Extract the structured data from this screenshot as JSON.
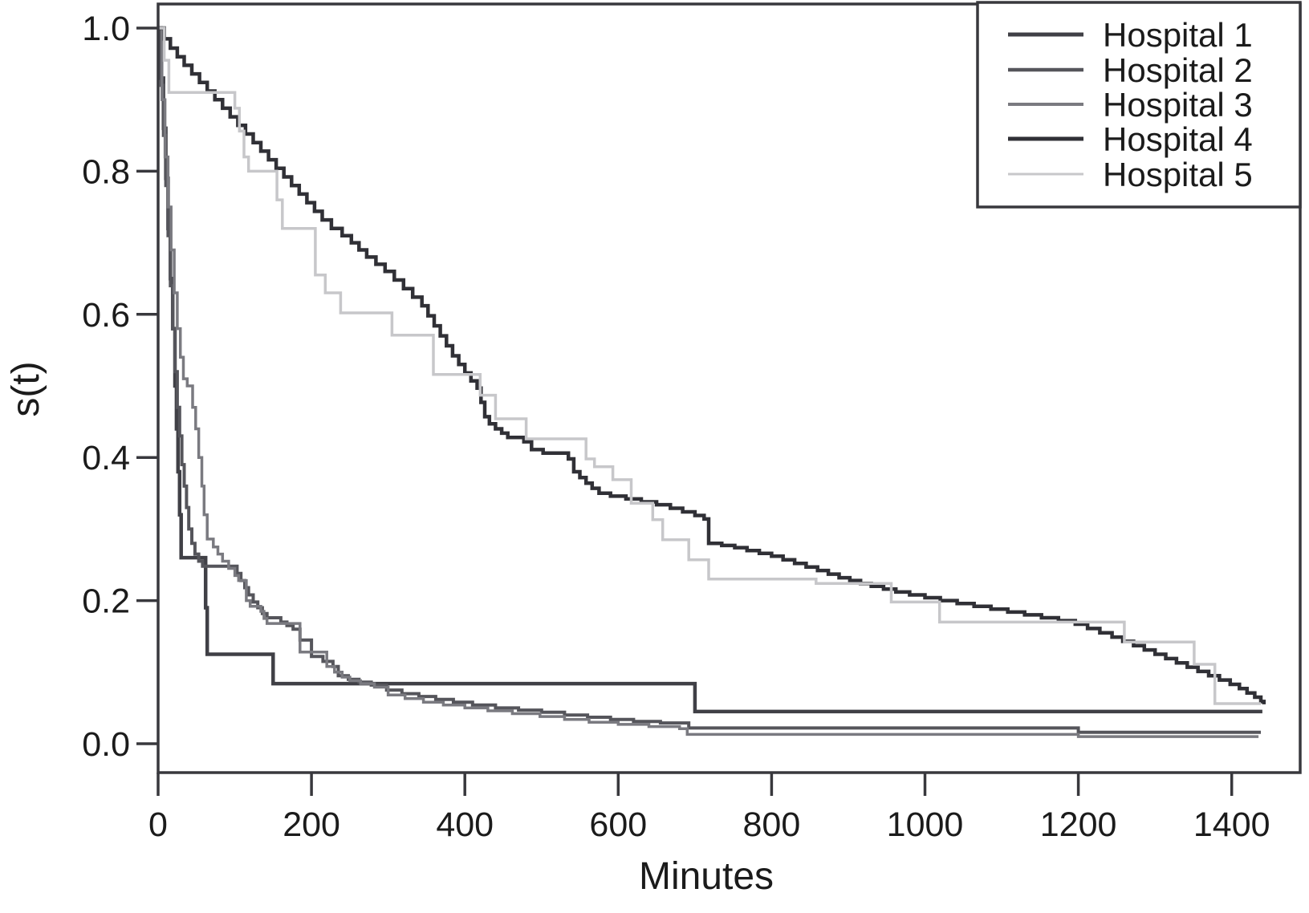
{
  "chart_data": {
    "type": "line",
    "subtype": "kaplan_meier_step",
    "title": "",
    "xlabel": "Minutes",
    "ylabel": "s(t)",
    "xlim": [
      0,
      1490
    ],
    "ylim": [
      0.0,
      1.04
    ],
    "grid": false,
    "legend_position": "top-right",
    "x_ticks": [
      0,
      200,
      400,
      600,
      800,
      1000,
      1200,
      1400
    ],
    "x_tick_labels": [
      "0",
      "200",
      "400",
      "600",
      "800",
      "1000",
      "1200",
      "1400"
    ],
    "y_ticks": [
      1.0,
      0.8,
      0.6,
      0.4,
      0.2,
      0.0
    ],
    "y_tick_labels": [
      "1.0",
      "0.8",
      "0.6",
      "0.4",
      "0.2",
      "0.0"
    ],
    "series": [
      {
        "name": "Hospital 1",
        "color": "#404046",
        "stroke_width": 4.5,
        "points": [
          [
            0,
            1.0
          ],
          [
            4,
            0.93
          ],
          [
            7,
            0.86
          ],
          [
            10,
            0.79
          ],
          [
            13,
            0.72
          ],
          [
            16,
            0.65
          ],
          [
            19,
            0.58
          ],
          [
            22,
            0.5
          ],
          [
            24,
            0.44
          ],
          [
            26,
            0.38
          ],
          [
            28,
            0.32
          ],
          [
            30,
            0.26
          ],
          [
            62,
            0.19
          ],
          [
            64,
            0.125
          ],
          [
            150,
            0.084
          ],
          [
            700,
            0.045
          ],
          [
            1440,
            0.045
          ]
        ]
      },
      {
        "name": "Hospital 2",
        "color": "#55555b",
        "stroke_width": 4,
        "points": [
          [
            0,
            1.0
          ],
          [
            4,
            0.92
          ],
          [
            7,
            0.85
          ],
          [
            10,
            0.78
          ],
          [
            13,
            0.71
          ],
          [
            16,
            0.64
          ],
          [
            19,
            0.58
          ],
          [
            22,
            0.52
          ],
          [
            25,
            0.47
          ],
          [
            28,
            0.43
          ],
          [
            31,
            0.39
          ],
          [
            34,
            0.36
          ],
          [
            37,
            0.33
          ],
          [
            40,
            0.3
          ],
          [
            44,
            0.28
          ],
          [
            48,
            0.265
          ],
          [
            53,
            0.255
          ],
          [
            58,
            0.248
          ],
          [
            103,
            0.238
          ],
          [
            108,
            0.228
          ],
          [
            113,
            0.218
          ],
          [
            118,
            0.208
          ],
          [
            124,
            0.198
          ],
          [
            130,
            0.19
          ],
          [
            136,
            0.182
          ],
          [
            142,
            0.176
          ],
          [
            160,
            0.17
          ],
          [
            168,
            0.165
          ],
          [
            176,
            0.16
          ],
          [
            185,
            0.145
          ],
          [
            200,
            0.122
          ],
          [
            215,
            0.115
          ],
          [
            228,
            0.108
          ],
          [
            235,
            0.095
          ],
          [
            248,
            0.09
          ],
          [
            262,
            0.086
          ],
          [
            278,
            0.082
          ],
          [
            298,
            0.075
          ],
          [
            318,
            0.07
          ],
          [
            340,
            0.066
          ],
          [
            362,
            0.062
          ],
          [
            385,
            0.058
          ],
          [
            410,
            0.054
          ],
          [
            440,
            0.05
          ],
          [
            470,
            0.047
          ],
          [
            500,
            0.044
          ],
          [
            530,
            0.04
          ],
          [
            560,
            0.037
          ],
          [
            590,
            0.034
          ],
          [
            620,
            0.031
          ],
          [
            655,
            0.029
          ],
          [
            692,
            0.022
          ],
          [
            1200,
            0.016
          ],
          [
            1438,
            0.016
          ]
        ]
      },
      {
        "name": "Hospital 3",
        "color": "#7a7a80",
        "stroke_width": 3.5,
        "points": [
          [
            0,
            1.0
          ],
          [
            5,
            0.9
          ],
          [
            9,
            0.82
          ],
          [
            13,
            0.75
          ],
          [
            17,
            0.69
          ],
          [
            21,
            0.63
          ],
          [
            25,
            0.58
          ],
          [
            29,
            0.54
          ],
          [
            33,
            0.51
          ],
          [
            38,
            0.5
          ],
          [
            45,
            0.47
          ],
          [
            49,
            0.44
          ],
          [
            53,
            0.4
          ],
          [
            57,
            0.36
          ],
          [
            60,
            0.32
          ],
          [
            64,
            0.286
          ],
          [
            72,
            0.275
          ],
          [
            78,
            0.265
          ],
          [
            84,
            0.255
          ],
          [
            92,
            0.245
          ],
          [
            100,
            0.235
          ],
          [
            105,
            0.228
          ],
          [
            115,
            0.2
          ],
          [
            120,
            0.192
          ],
          [
            134,
            0.185
          ],
          [
            138,
            0.175
          ],
          [
            142,
            0.168
          ],
          [
            185,
            0.128
          ],
          [
            220,
            0.108
          ],
          [
            230,
            0.1
          ],
          [
            240,
            0.093
          ],
          [
            250,
            0.088
          ],
          [
            264,
            0.084
          ],
          [
            282,
            0.079
          ],
          [
            300,
            0.068
          ],
          [
            322,
            0.063
          ],
          [
            346,
            0.058
          ],
          [
            372,
            0.054
          ],
          [
            400,
            0.05
          ],
          [
            430,
            0.046
          ],
          [
            462,
            0.042
          ],
          [
            498,
            0.038
          ],
          [
            530,
            0.034
          ],
          [
            562,
            0.03
          ],
          [
            600,
            0.027
          ],
          [
            640,
            0.024
          ],
          [
            680,
            0.021
          ],
          [
            690,
            0.013
          ],
          [
            1200,
            0.01
          ],
          [
            1435,
            0.01
          ]
        ]
      },
      {
        "name": "Hospital 4",
        "color": "#303036",
        "stroke_width": 4.5,
        "points": [
          [
            0,
            1.0
          ],
          [
            8,
            0.985
          ],
          [
            16,
            0.972
          ],
          [
            25,
            0.96
          ],
          [
            34,
            0.948
          ],
          [
            44,
            0.936
          ],
          [
            54,
            0.924
          ],
          [
            64,
            0.912
          ],
          [
            74,
            0.9
          ],
          [
            84,
            0.888
          ],
          [
            94,
            0.876
          ],
          [
            104,
            0.864
          ],
          [
            114,
            0.852
          ],
          [
            124,
            0.84
          ],
          [
            134,
            0.828
          ],
          [
            144,
            0.816
          ],
          [
            154,
            0.804
          ],
          [
            164,
            0.792
          ],
          [
            174,
            0.78
          ],
          [
            184,
            0.768
          ],
          [
            194,
            0.756
          ],
          [
            204,
            0.744
          ],
          [
            214,
            0.732
          ],
          [
            226,
            0.72
          ],
          [
            240,
            0.71
          ],
          [
            252,
            0.7
          ],
          [
            262,
            0.69
          ],
          [
            272,
            0.68
          ],
          [
            284,
            0.67
          ],
          [
            296,
            0.66
          ],
          [
            308,
            0.648
          ],
          [
            320,
            0.636
          ],
          [
            332,
            0.624
          ],
          [
            344,
            0.612
          ],
          [
            352,
            0.598
          ],
          [
            360,
            0.584
          ],
          [
            368,
            0.57
          ],
          [
            376,
            0.556
          ],
          [
            384,
            0.542
          ],
          [
            392,
            0.53
          ],
          [
            400,
            0.518
          ],
          [
            408,
            0.507
          ],
          [
            416,
            0.497
          ],
          [
            421,
            0.477
          ],
          [
            426,
            0.457
          ],
          [
            432,
            0.447
          ],
          [
            440,
            0.44
          ],
          [
            448,
            0.434
          ],
          [
            456,
            0.428
          ],
          [
            477,
            0.422
          ],
          [
            487,
            0.411
          ],
          [
            502,
            0.406
          ],
          [
            535,
            0.398
          ],
          [
            542,
            0.38
          ],
          [
            550,
            0.372
          ],
          [
            558,
            0.364
          ],
          [
            566,
            0.357
          ],
          [
            575,
            0.35
          ],
          [
            590,
            0.346
          ],
          [
            610,
            0.342
          ],
          [
            630,
            0.338
          ],
          [
            650,
            0.334
          ],
          [
            668,
            0.329
          ],
          [
            684,
            0.324
          ],
          [
            700,
            0.319
          ],
          [
            712,
            0.314
          ],
          [
            718,
            0.28
          ],
          [
            735,
            0.277
          ],
          [
            752,
            0.274
          ],
          [
            768,
            0.27
          ],
          [
            784,
            0.266
          ],
          [
            800,
            0.262
          ],
          [
            815,
            0.257
          ],
          [
            830,
            0.252
          ],
          [
            845,
            0.247
          ],
          [
            860,
            0.242
          ],
          [
            874,
            0.237
          ],
          [
            888,
            0.232
          ],
          [
            902,
            0.228
          ],
          [
            916,
            0.224
          ],
          [
            930,
            0.22
          ],
          [
            946,
            0.216
          ],
          [
            962,
            0.212
          ],
          [
            980,
            0.208
          ],
          [
            1000,
            0.204
          ],
          [
            1020,
            0.2
          ],
          [
            1042,
            0.196
          ],
          [
            1064,
            0.192
          ],
          [
            1086,
            0.188
          ],
          [
            1108,
            0.184
          ],
          [
            1130,
            0.18
          ],
          [
            1152,
            0.176
          ],
          [
            1174,
            0.172
          ],
          [
            1196,
            0.167
          ],
          [
            1212,
            0.161
          ],
          [
            1228,
            0.155
          ],
          [
            1244,
            0.149
          ],
          [
            1258,
            0.143
          ],
          [
            1272,
            0.137
          ],
          [
            1286,
            0.131
          ],
          [
            1300,
            0.125
          ],
          [
            1314,
            0.119
          ],
          [
            1328,
            0.113
          ],
          [
            1342,
            0.107
          ],
          [
            1356,
            0.101
          ],
          [
            1370,
            0.095
          ],
          [
            1384,
            0.089
          ],
          [
            1398,
            0.083
          ],
          [
            1410,
            0.077
          ],
          [
            1420,
            0.071
          ],
          [
            1430,
            0.065
          ],
          [
            1438,
            0.059
          ],
          [
            1442,
            0.055
          ]
        ]
      },
      {
        "name": "Hospital 5",
        "color": "#c7c7ca",
        "stroke_width": 3.5,
        "points": [
          [
            0,
            1.0
          ],
          [
            8,
            0.955
          ],
          [
            14,
            0.91
          ],
          [
            100,
            0.888
          ],
          [
            106,
            0.856
          ],
          [
            112,
            0.82
          ],
          [
            118,
            0.8
          ],
          [
            155,
            0.76
          ],
          [
            162,
            0.72
          ],
          [
            205,
            0.655
          ],
          [
            218,
            0.63
          ],
          [
            238,
            0.602
          ],
          [
            305,
            0.571
          ],
          [
            359,
            0.516
          ],
          [
            420,
            0.487
          ],
          [
            440,
            0.454
          ],
          [
            480,
            0.426
          ],
          [
            558,
            0.398
          ],
          [
            569,
            0.387
          ],
          [
            593,
            0.369
          ],
          [
            617,
            0.336
          ],
          [
            645,
            0.313
          ],
          [
            658,
            0.285
          ],
          [
            692,
            0.257
          ],
          [
            718,
            0.23
          ],
          [
            858,
            0.224
          ],
          [
            956,
            0.198
          ],
          [
            1019,
            0.17
          ],
          [
            1260,
            0.142
          ],
          [
            1351,
            0.111
          ],
          [
            1378,
            0.056
          ],
          [
            1438,
            0.056
          ]
        ]
      }
    ]
  },
  "colors": {
    "axis": "#38383d",
    "text": "#1b1b1b",
    "background": "#ffffff"
  }
}
